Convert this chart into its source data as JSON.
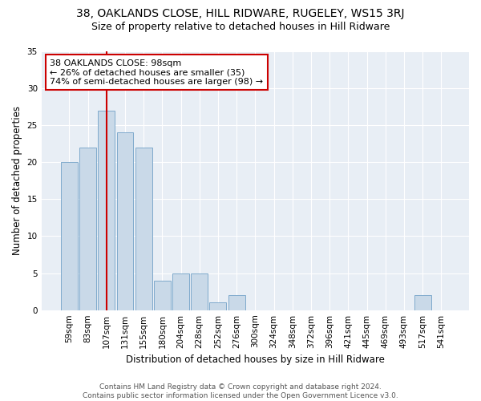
{
  "title": "38, OAKLANDS CLOSE, HILL RIDWARE, RUGELEY, WS15 3RJ",
  "subtitle": "Size of property relative to detached houses in Hill Ridware",
  "xlabel": "Distribution of detached houses by size in Hill Ridware",
  "ylabel": "Number of detached properties",
  "categories": [
    "59sqm",
    "83sqm",
    "107sqm",
    "131sqm",
    "155sqm",
    "180sqm",
    "204sqm",
    "228sqm",
    "252sqm",
    "276sqm",
    "300sqm",
    "324sqm",
    "348sqm",
    "372sqm",
    "396sqm",
    "421sqm",
    "445sqm",
    "469sqm",
    "493sqm",
    "517sqm",
    "541sqm"
  ],
  "values": [
    20,
    22,
    27,
    24,
    22,
    4,
    5,
    5,
    1,
    2,
    0,
    0,
    0,
    0,
    0,
    0,
    0,
    0,
    0,
    2,
    0
  ],
  "bar_color": "#c9d9e8",
  "bar_edgecolor": "#7faacc",
  "vline_x": 2.0,
  "vline_color": "#cc0000",
  "annotation_text": "38 OAKLANDS CLOSE: 98sqm\n← 26% of detached houses are smaller (35)\n74% of semi-detached houses are larger (98) →",
  "annotation_box_color": "#ffffff",
  "annotation_box_edgecolor": "#cc0000",
  "ylim": [
    0,
    35
  ],
  "yticks": [
    0,
    5,
    10,
    15,
    20,
    25,
    30,
    35
  ],
  "background_color": "#e8eef5",
  "grid_color": "#ffffff",
  "footer_text": "Contains HM Land Registry data © Crown copyright and database right 2024.\nContains public sector information licensed under the Open Government Licence v3.0.",
  "title_fontsize": 10,
  "subtitle_fontsize": 9,
  "tick_fontsize": 7.5,
  "ylabel_fontsize": 8.5,
  "xlabel_fontsize": 8.5,
  "footer_fontsize": 6.5
}
